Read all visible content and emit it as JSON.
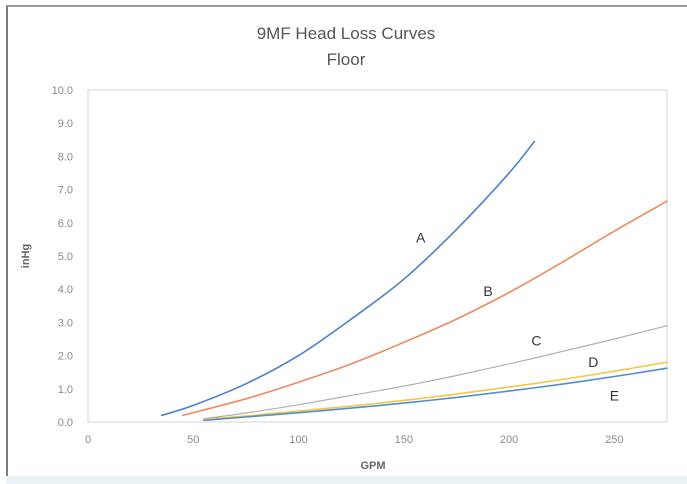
{
  "chart_data": {
    "type": "line",
    "title": "9MF Head Loss Curves",
    "subtitle": "Floor",
    "xlabel": "GPM",
    "ylabel": "inHg",
    "xlim": [
      0,
      275
    ],
    "ylim": [
      0,
      10
    ],
    "x_ticks": [
      "0",
      "50",
      "100",
      "150",
      "200",
      "250"
    ],
    "y_ticks": [
      "0.0",
      "1.0",
      "2.0",
      "3.0",
      "4.0",
      "5.0",
      "6.0",
      "7.0",
      "8.0",
      "9.0",
      "10.0"
    ],
    "grid": false,
    "legend": "none",
    "series": [
      {
        "name": "A",
        "color": "#4a7fc9",
        "points": [
          [
            35,
            0.2
          ],
          [
            50,
            0.5
          ],
          [
            75,
            1.15
          ],
          [
            100,
            2.0
          ],
          [
            125,
            3.1
          ],
          [
            150,
            4.3
          ],
          [
            175,
            5.8
          ],
          [
            200,
            7.5
          ],
          [
            212,
            8.45
          ]
        ]
      },
      {
        "name": "B",
        "color": "#ec8a5e",
        "points": [
          [
            45,
            0.2
          ],
          [
            75,
            0.7
          ],
          [
            100,
            1.2
          ],
          [
            125,
            1.75
          ],
          [
            150,
            2.4
          ],
          [
            175,
            3.1
          ],
          [
            200,
            3.9
          ],
          [
            225,
            4.8
          ],
          [
            250,
            5.75
          ],
          [
            275,
            6.65
          ]
        ]
      },
      {
        "name": "C",
        "color": "#b0b0b0",
        "points": [
          [
            55,
            0.1
          ],
          [
            75,
            0.27
          ],
          [
            100,
            0.52
          ],
          [
            125,
            0.8
          ],
          [
            150,
            1.08
          ],
          [
            175,
            1.4
          ],
          [
            200,
            1.75
          ],
          [
            225,
            2.12
          ],
          [
            250,
            2.5
          ],
          [
            275,
            2.9
          ]
        ]
      },
      {
        "name": "D",
        "color": "#f2c744",
        "points": [
          [
            55,
            0.08
          ],
          [
            75,
            0.18
          ],
          [
            100,
            0.33
          ],
          [
            125,
            0.48
          ],
          [
            150,
            0.65
          ],
          [
            175,
            0.84
          ],
          [
            200,
            1.05
          ],
          [
            225,
            1.28
          ],
          [
            250,
            1.53
          ],
          [
            275,
            1.8
          ]
        ]
      },
      {
        "name": "E",
        "color": "#4f8fd1",
        "points": [
          [
            55,
            0.05
          ],
          [
            75,
            0.15
          ],
          [
            100,
            0.28
          ],
          [
            125,
            0.42
          ],
          [
            150,
            0.57
          ],
          [
            175,
            0.74
          ],
          [
            200,
            0.93
          ],
          [
            225,
            1.14
          ],
          [
            250,
            1.37
          ],
          [
            275,
            1.62
          ]
        ]
      }
    ],
    "labels": [
      {
        "text": "A",
        "x": 158,
        "y": 5.4
      },
      {
        "text": "B",
        "x": 190,
        "y": 3.8
      },
      {
        "text": "C",
        "x": 213,
        "y": 2.3
      },
      {
        "text": "D",
        "x": 240,
        "y": 1.65
      },
      {
        "text": "E",
        "x": 250,
        "y": 0.65
      }
    ]
  }
}
